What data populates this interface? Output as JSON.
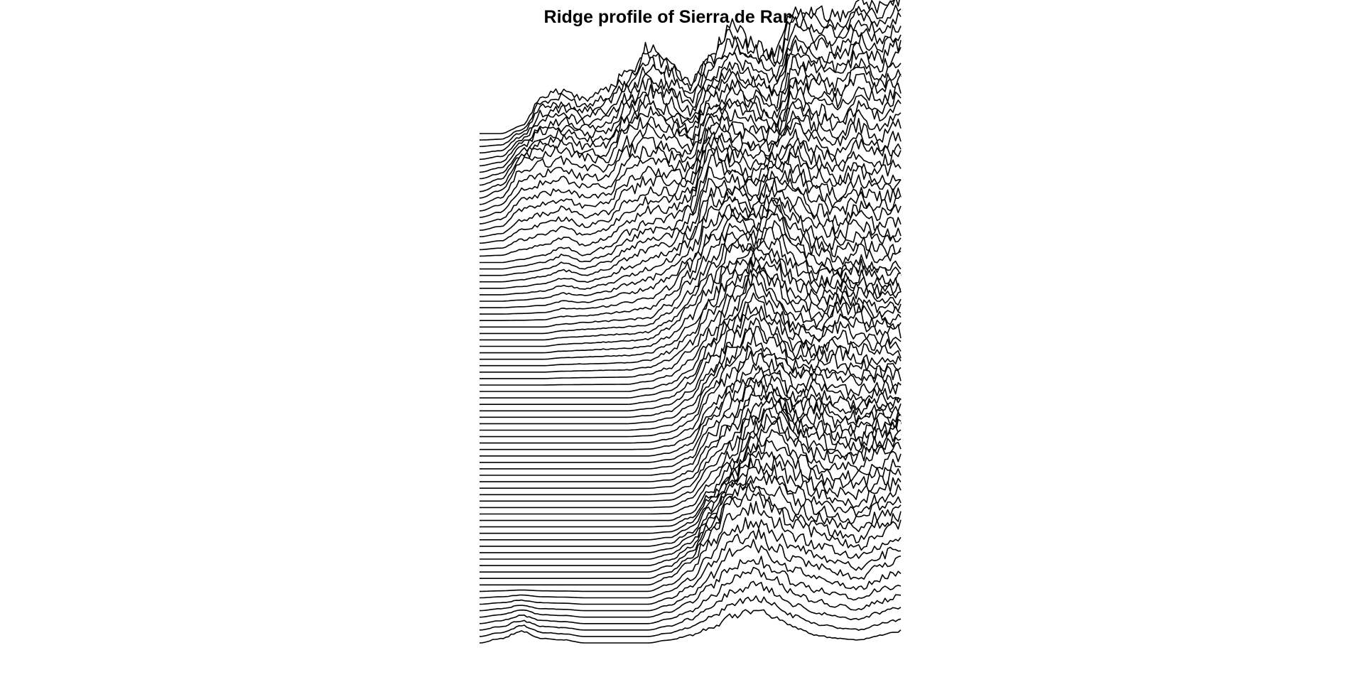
{
  "chart_data": {
    "type": "line",
    "title": "Ridge profile of Sierra de Ramon",
    "xlabel": "",
    "ylabel": "",
    "axes_shown": false,
    "grid": false,
    "legend": "none",
    "line_color": "#000000",
    "background": "#ffffff",
    "n_profiles": 80,
    "x": [
      0,
      0.05,
      0.1,
      0.15,
      0.2,
      0.25,
      0.3,
      0.35,
      0.4,
      0.45,
      0.5,
      0.55,
      0.6,
      0.65,
      0.7,
      0.75,
      0.8,
      0.85,
      0.9,
      0.95,
      1
    ],
    "terrain_keyframes": [
      {
        "row": 0,
        "values": [
          0,
          0,
          5,
          25,
          28,
          23,
          30,
          40,
          58,
          50,
          35,
          55,
          72,
          60,
          55,
          85,
          82,
          78,
          90,
          85,
          95
        ]
      },
      {
        "row": 10,
        "values": [
          0,
          5,
          25,
          30,
          32,
          27,
          25,
          45,
          52,
          45,
          38,
          58,
          65,
          60,
          50,
          75,
          70,
          65,
          80,
          72,
          80
        ]
      },
      {
        "row": 20,
        "values": [
          0,
          0,
          2,
          5,
          10,
          5,
          10,
          20,
          28,
          30,
          40,
          75,
          62,
          55,
          65,
          70,
          58,
          50,
          60,
          55,
          60
        ]
      },
      {
        "row": 30,
        "values": [
          0,
          0,
          0,
          0,
          2,
          3,
          4,
          5,
          6,
          15,
          30,
          50,
          68,
          60,
          75,
          55,
          45,
          40,
          45,
          40,
          40
        ]
      },
      {
        "row": 40,
        "values": [
          0,
          0,
          0,
          0,
          0,
          0,
          0,
          0,
          2,
          5,
          15,
          35,
          55,
          75,
          60,
          45,
          40,
          55,
          50,
          45,
          45
        ]
      },
      {
        "row": 50,
        "values": [
          0,
          0,
          0,
          0,
          0,
          0,
          0,
          0,
          0,
          2,
          8,
          30,
          45,
          60,
          55,
          42,
          48,
          40,
          38,
          42,
          40
        ]
      },
      {
        "row": 60,
        "values": [
          0,
          0,
          0,
          0,
          0,
          0,
          0,
          0,
          0,
          0,
          5,
          20,
          35,
          58,
          70,
          55,
          45,
          40,
          42,
          50,
          55
        ]
      },
      {
        "row": 70,
        "values": [
          0,
          0,
          0,
          0,
          0,
          0,
          0,
          0,
          0,
          5,
          15,
          35,
          55,
          60,
          50,
          40,
          35,
          30,
          25,
          35,
          40
        ]
      },
      {
        "row": 79,
        "values": [
          0,
          3,
          8,
          3,
          2,
          0,
          0,
          0,
          0,
          2,
          5,
          10,
          18,
          22,
          18,
          10,
          5,
          3,
          2,
          5,
          8
        ]
      }
    ]
  }
}
